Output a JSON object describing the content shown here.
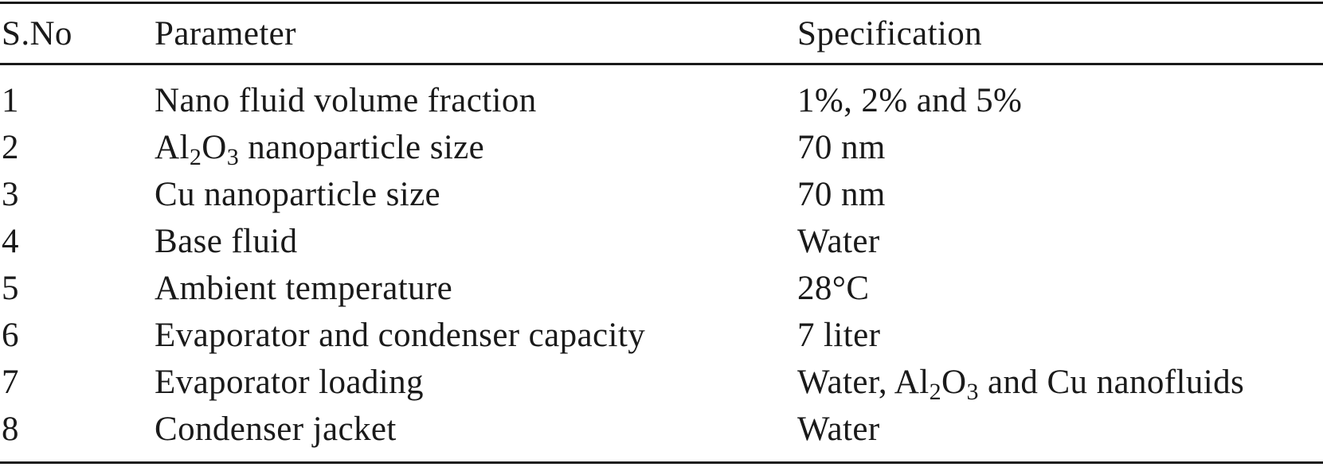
{
  "table": {
    "headers": {
      "sno": "S.No",
      "parameter": "Parameter",
      "specification": "Specification"
    },
    "rows": [
      {
        "sno": "1",
        "parameter": [
          {
            "t": "Nano fluid volume fraction"
          }
        ],
        "specification": [
          {
            "t": "1%, 2% and 5%"
          }
        ]
      },
      {
        "sno": "2",
        "parameter": [
          {
            "t": "Al"
          },
          {
            "t": "2",
            "sub": true
          },
          {
            "t": "O"
          },
          {
            "t": "3",
            "sub": true
          },
          {
            "t": " nanoparticle size"
          }
        ],
        "specification": [
          {
            "t": "70 nm"
          }
        ]
      },
      {
        "sno": "3",
        "parameter": [
          {
            "t": "Cu nanoparticle size"
          }
        ],
        "specification": [
          {
            "t": "70 nm"
          }
        ]
      },
      {
        "sno": "4",
        "parameter": [
          {
            "t": "Base fluid"
          }
        ],
        "specification": [
          {
            "t": "Water"
          }
        ]
      },
      {
        "sno": "5",
        "parameter": [
          {
            "t": "Ambient temperature"
          }
        ],
        "specification": [
          {
            "t": "28°C"
          }
        ]
      },
      {
        "sno": "6",
        "parameter": [
          {
            "t": "Evaporator and condenser capacity"
          }
        ],
        "specification": [
          {
            "t": "7 liter"
          }
        ]
      },
      {
        "sno": "7",
        "parameter": [
          {
            "t": "Evaporator loading"
          }
        ],
        "specification": [
          {
            "t": "Water, Al"
          },
          {
            "t": "2",
            "sub": true
          },
          {
            "t": "O"
          },
          {
            "t": "3",
            "sub": true
          },
          {
            "t": " and Cu nanofluids"
          }
        ]
      },
      {
        "sno": "8",
        "parameter": [
          {
            "t": "Condenser jacket"
          }
        ],
        "specification": [
          {
            "t": "Water"
          }
        ]
      }
    ]
  }
}
